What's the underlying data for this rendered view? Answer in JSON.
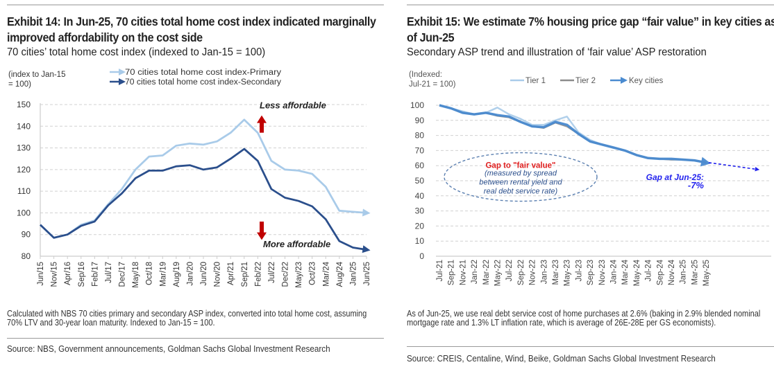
{
  "exhibits": {
    "left": {
      "title": "Exhibit 14: In Jun-25, 70 cities total home cost index indicated marginally improved affordability on the cost side",
      "subtitle": "70 cities’ total home cost index (indexed to Jan-15 = 100)",
      "note": "Calculated with NBS 70 cities primary and secondary ASP index, converted into total home cost, assuming 70% LTV and 30-year loan maturity. Indexed to Jan-15 = 100.",
      "source": "Source: NBS, Government announcements, Goldman Sachs Global Investment Research"
    },
    "right": {
      "title": "Exhibit 15: We estimate 7% housing price gap “fair value” in key cities as of Jun-25",
      "subtitle": "Secondary ASP trend and illustration of ‘fair value’ ASP restoration",
      "note": "As of Jun-25, we use real debt service cost of home purchases at 2.6% (baking in 2.9% blended nominal mortgage rate and 1.3% LT inflation rate, which is average of 26E-28E per GS economists).",
      "source": "Source: CREIS, Centaline, Wind, Beike, Goldman Sachs Global Investment Research"
    }
  },
  "chart_data": [
    {
      "type": "line",
      "title": "70 cities’ total home cost index",
      "ylabel": "(index to Jan-15 = 100)",
      "ylabel_lines": [
        "(index to Jan-15",
        "= 100)"
      ],
      "ylim": [
        80,
        150
      ],
      "yticks": [
        80,
        90,
        100,
        110,
        120,
        130,
        140,
        150
      ],
      "grid": true,
      "legend_position": "top",
      "x_tick_labels": [
        "Jun/15",
        "Nov/15",
        "Apr/16",
        "Sep/16",
        "Feb/17",
        "Jul/17",
        "Dec/17",
        "May/18",
        "Oct/18",
        "Mar/19",
        "Aug/19",
        "Jan/20",
        "Jun/20",
        "Nov/20",
        "Apr/21",
        "Sep/21",
        "Feb/22",
        "Jul/22",
        "Dec/22",
        "May/23",
        "Oct/23",
        "Mar/24",
        "Aug/24",
        "Jan/25",
        "Jun/25"
      ],
      "series": [
        {
          "name": "70 cities total home cost index-Primary",
          "color": "#a9cbe9",
          "values": [
            94.5,
            88.5,
            90,
            94.5,
            96.5,
            104,
            111,
            120,
            126,
            126.5,
            131,
            132,
            131.5,
            133,
            137,
            143,
            137,
            124,
            120,
            119.5,
            118,
            112,
            101,
            100.5,
            100
          ]
        },
        {
          "name": "70 cities total home cost index-Secondary",
          "color": "#2b4f8c",
          "values": [
            94.5,
            88.5,
            90,
            94,
            96,
            103.5,
            109,
            116,
            119.5,
            119.5,
            121.5,
            122,
            120,
            121,
            125,
            129.5,
            124,
            111,
            107,
            105.5,
            103,
            97,
            87,
            84,
            83
          ]
        }
      ],
      "annotations": [
        {
          "text": "Less affordable",
          "direction": "up",
          "color": "#c00000"
        },
        {
          "text": "More affordable",
          "direction": "down",
          "color": "#c00000"
        }
      ]
    },
    {
      "type": "line",
      "title": "Secondary ASP trend and illustration of ‘fair value’ ASP restoration",
      "ylabel": "(Indexed: Jul-21 = 100)",
      "ylabel_lines": [
        "(Indexed:",
        "Jul-21  = 100)"
      ],
      "ylim": [
        0,
        100
      ],
      "yticks": [
        0,
        10,
        20,
        30,
        40,
        50,
        60,
        70,
        80,
        90,
        100
      ],
      "grid": true,
      "legend_position": "top",
      "x_tick_labels": [
        "Jul-21",
        "Sep-21",
        "Nov-21",
        "Jan-22",
        "Mar-22",
        "May-22",
        "Jul-22",
        "Sep-22",
        "Nov-22",
        "Jan-23",
        "Mar-23",
        "May-23",
        "Jul-23",
        "Sep-23",
        "Nov-23",
        "Jan-24",
        "Mar-24",
        "May-24",
        "Jul-24",
        "Sep-24",
        "Nov-24",
        "Jan-25",
        "Mar-25",
        "May-25"
      ],
      "series": [
        {
          "name": "Tier 1",
          "color": "#a9cbe9",
          "values": [
            100,
            98,
            96,
            94,
            95,
            98.5,
            94,
            91,
            87,
            87,
            90,
            92.5,
            82,
            77,
            74,
            72,
            70,
            67,
            65,
            64.5,
            64,
            64,
            63.5,
            62
          ]
        },
        {
          "name": "Tier 2",
          "color": "#8c8c8c",
          "values": [
            100,
            98,
            95,
            94,
            95,
            93,
            92,
            89,
            86,
            85,
            88.5,
            86,
            81,
            76,
            74,
            72,
            70,
            67,
            65,
            64.5,
            64,
            64,
            63.5,
            62
          ]
        },
        {
          "name": "Key cities",
          "color": "#4a8bd0",
          "values": [
            100,
            98,
            95,
            94,
            95,
            93.5,
            92.5,
            89,
            86,
            85.5,
            89,
            87,
            81,
            76,
            74,
            72,
            70,
            67,
            65,
            64.5,
            64.5,
            64,
            63.5,
            62
          ]
        }
      ],
      "projection": {
        "from": 62,
        "to": 57.5,
        "label": "Gap at Jun-25:",
        "value": "-7%",
        "color": "#2222ee"
      },
      "annotations": [
        {
          "title": "Gap to \"fair value\"",
          "lines": [
            "(measured by spread",
            "between rental yield and",
            "real debt service rate)"
          ],
          "title_color": "#e02020",
          "text_color": "#2b4f8c"
        }
      ]
    }
  ]
}
